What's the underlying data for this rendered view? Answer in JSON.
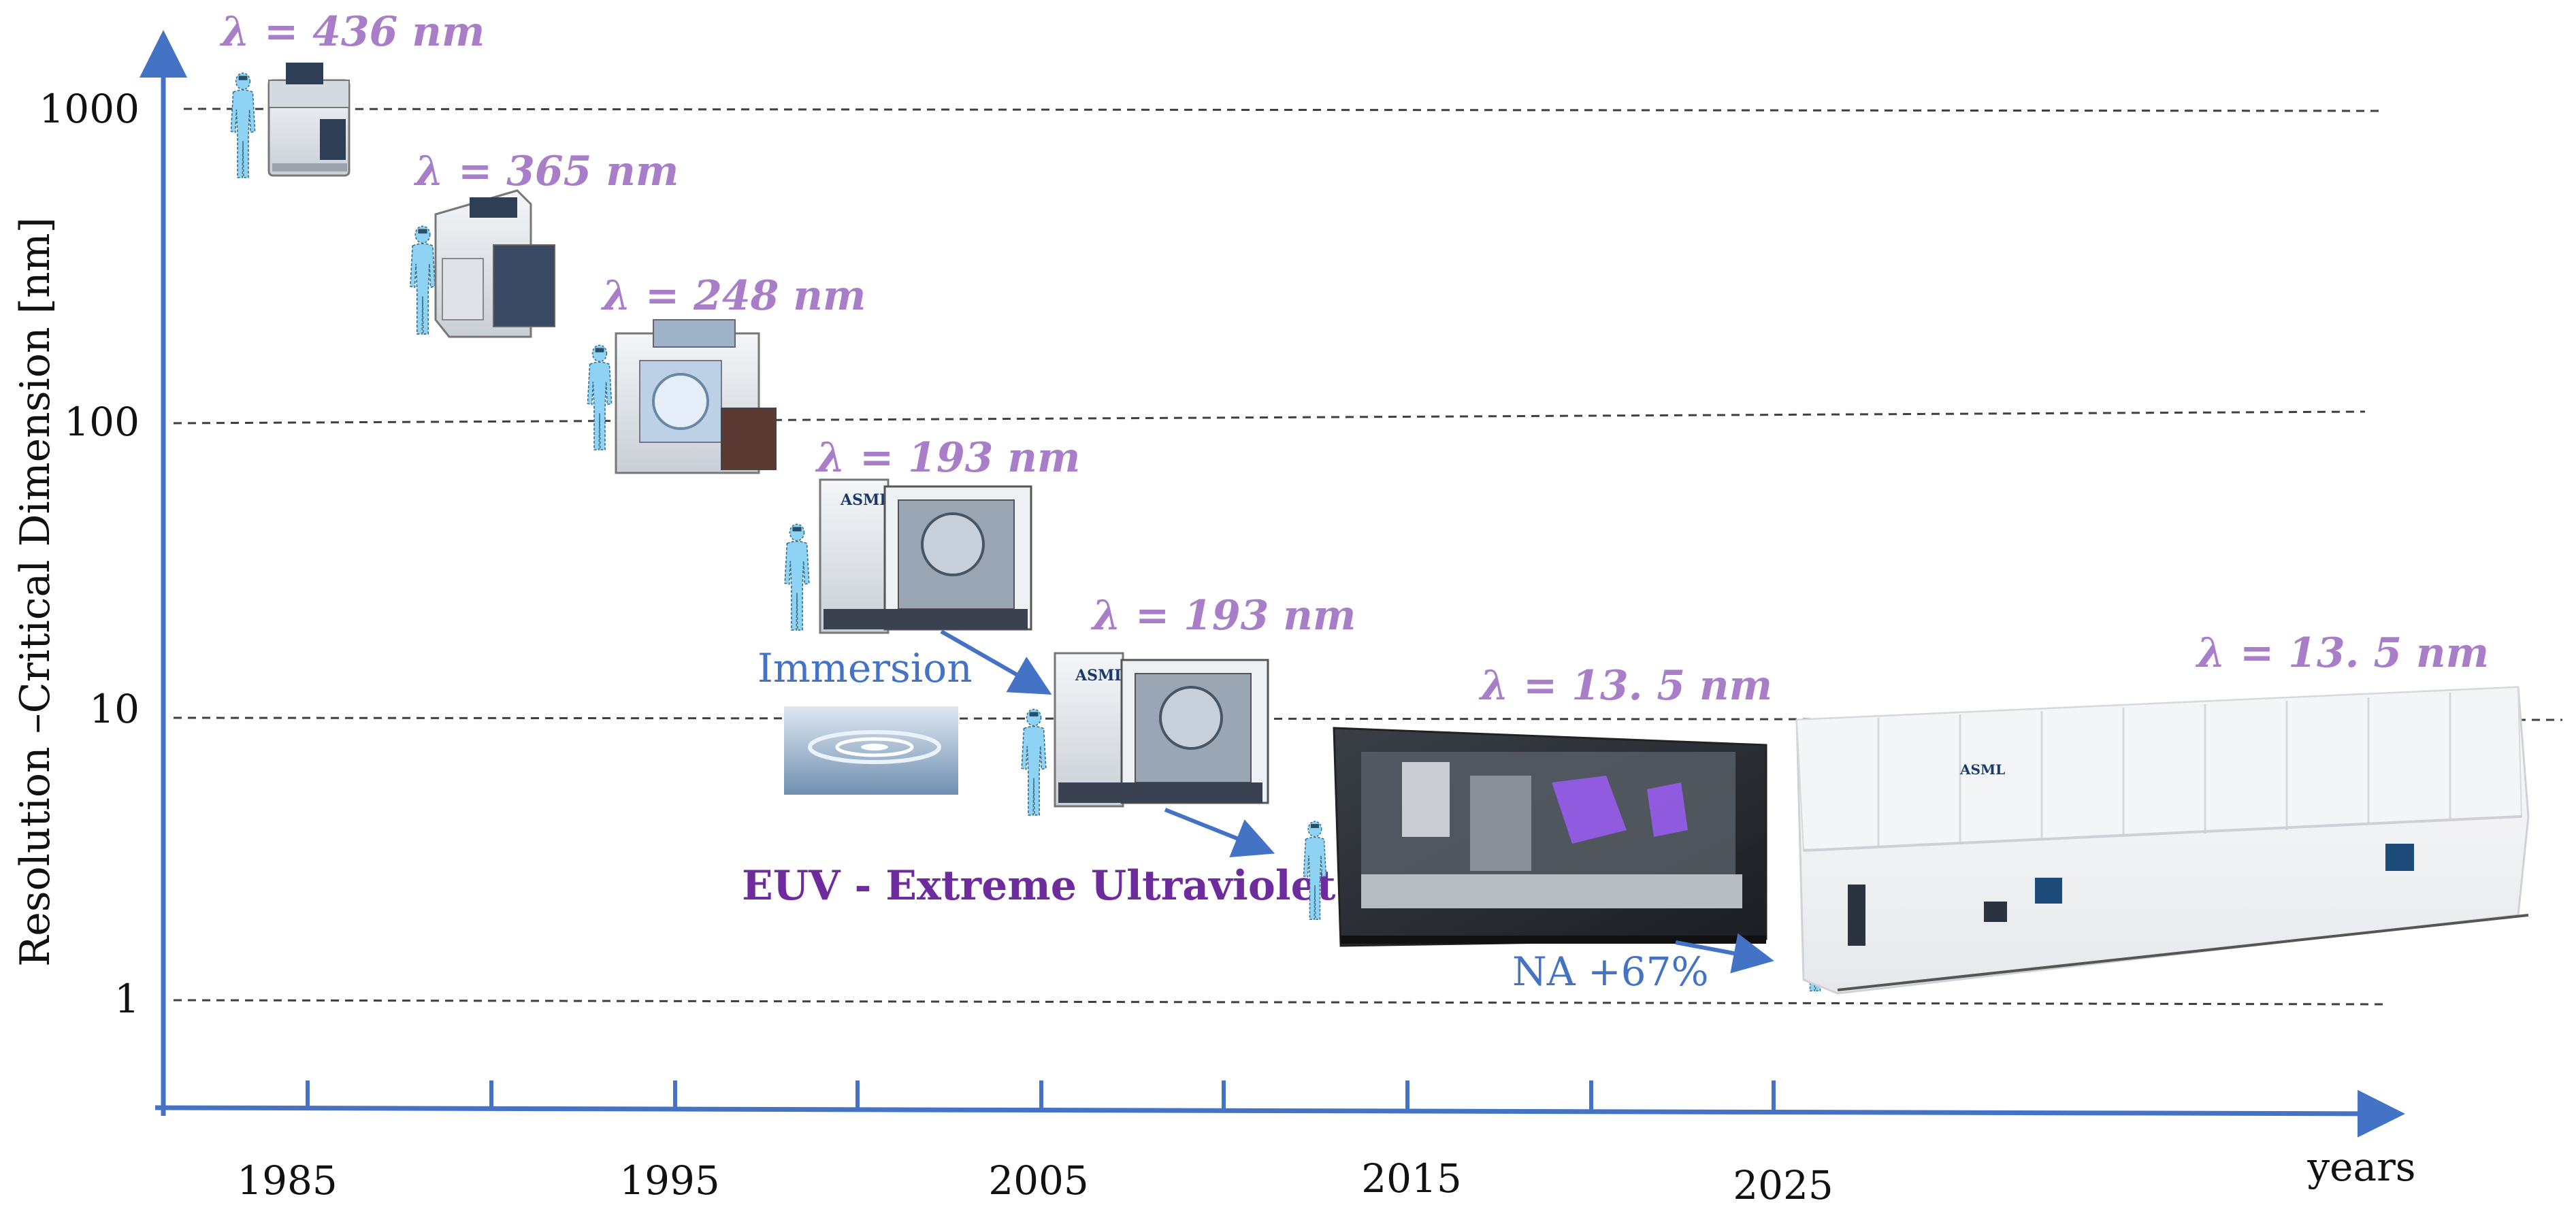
{
  "colors": {
    "axis": "#4472c4",
    "grid": "#404040",
    "lambda": "#a97ec9",
    "euv_title": "#6d2b9e",
    "annotation": "#4472c4",
    "person": "#8fd3f4"
  },
  "axes": {
    "y_label": "Resolution –Critical Dimension [nm]",
    "x_label": "years",
    "y_scale": "log",
    "y_ticks": [
      "1000",
      "100",
      "10",
      "1"
    ],
    "x_ticks": [
      "1985",
      "1995",
      "2005",
      "2015",
      "2025"
    ]
  },
  "machines": [
    {
      "wavelength_label": "λ = 436  nm",
      "icon": "stepper-machine-icon"
    },
    {
      "wavelength_label": "λ = 365  nm",
      "icon": "stepper-machine-icon"
    },
    {
      "wavelength_label": "λ = 248  nm",
      "icon": "scanner-machine-icon"
    },
    {
      "wavelength_label": "λ = 193  nm",
      "icon": "asml-scanner-icon"
    },
    {
      "wavelength_label": "λ = 193  nm",
      "icon": "asml-immersion-scanner-icon"
    },
    {
      "wavelength_label": "λ = 13. 5 nm",
      "icon": "euv-machine-icon"
    },
    {
      "wavelength_label": "λ = 13. 5 nm",
      "icon": "high-na-euv-machine-icon"
    }
  ],
  "annotations": {
    "immersion": "Immersion",
    "euv": "EUV - Extreme Ultraviolet",
    "na": "NA +67%"
  },
  "brand": {
    "logo_text": "ASML"
  }
}
